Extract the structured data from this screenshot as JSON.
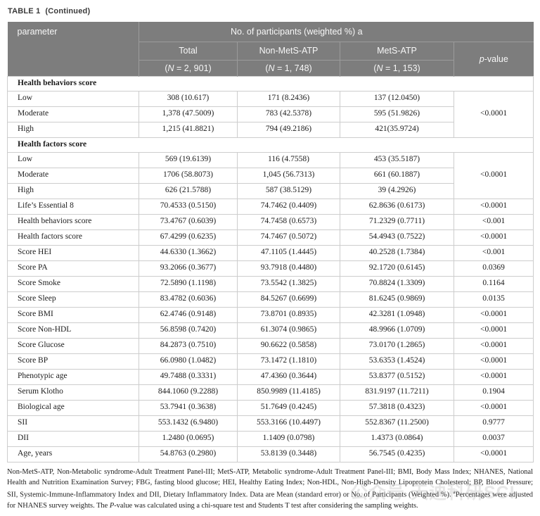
{
  "title": {
    "label": "TABLE 1",
    "continued": "(Continued)"
  },
  "header": {
    "parameter": "parameter",
    "group": "No. of participants (weighted %) a",
    "columns": [
      {
        "label": "Total",
        "n_open": "(",
        "n_var": "N",
        "n_rest": " = 2, 901)"
      },
      {
        "label": "Non-MetS-ATP",
        "n_open": "(",
        "n_var": "N",
        "n_rest": " = 1, 748)"
      },
      {
        "label": "MetS-ATP",
        "n_open": "(",
        "n_var": "N",
        "n_rest": " = 1, 153)"
      }
    ],
    "pvalue": {
      "italic": "p",
      "rest": "-value"
    }
  },
  "rows": [
    {
      "type": "section",
      "label": "Health behaviors score"
    },
    {
      "type": "data",
      "label": "Low",
      "total": "308 (10.617)",
      "non_mets": "171 (8.2436)",
      "mets": "137 (12.0450)",
      "p": "<0.0001",
      "p_rowspan": 3
    },
    {
      "type": "data",
      "label": "Moderate",
      "total": "1,378 (47.5009)",
      "non_mets": "783 (42.5378)",
      "mets": "595 (51.9826)"
    },
    {
      "type": "data",
      "label": "High",
      "total": "1,215 (41.8821)",
      "non_mets": "794 (49.2186)",
      "mets": "421(35.9724)"
    },
    {
      "type": "section",
      "label": "Health factors score"
    },
    {
      "type": "data",
      "label": "Low",
      "total": "569 (19.6139)",
      "non_mets": "116 (4.7558)",
      "mets": "453 (35.5187)",
      "p": "<0.0001",
      "p_rowspan": 3
    },
    {
      "type": "data",
      "label": "Moderate",
      "total": "1706 (58.8073)",
      "non_mets": "1,045 (56.7313)",
      "mets": "661 (60.1887)"
    },
    {
      "type": "data",
      "label": "High",
      "total": "626 (21.5788)",
      "non_mets": "587 (38.5129)",
      "mets": "39 (4.2926)"
    },
    {
      "type": "data",
      "label": "Life’s Essential 8",
      "total": "70.4533 (0.5150)",
      "non_mets": "74.7462 (0.4409)",
      "mets": "62.8636 (0.6173)",
      "p": "<0.0001"
    },
    {
      "type": "data",
      "label": "Health behaviors score",
      "total": "73.4767 (0.6039)",
      "non_mets": "74.7458 (0.6573)",
      "mets": "71.2329 (0.7711)",
      "p": "<0.001"
    },
    {
      "type": "data",
      "label": "Health factors score",
      "total": "67.4299 (0.6235)",
      "non_mets": "74.7467 (0.5072)",
      "mets": "54.4943 (0.7522)",
      "p": "<0.0001"
    },
    {
      "type": "data",
      "label": "Score HEI",
      "total": "44.6330 (1.3662)",
      "non_mets": "47.1105 (1.4445)",
      "mets": "40.2528 (1.7384)",
      "p": "<0.001"
    },
    {
      "type": "data",
      "label": "Score PA",
      "total": "93.2066 (0.3677)",
      "non_mets": "93.7918 (0.4480)",
      "mets": "92.1720 (0.6145)",
      "p": "0.0369"
    },
    {
      "type": "data",
      "label": "Score Smoke",
      "total": "72.5890 (1.1198)",
      "non_mets": "73.5542 (1.3825)",
      "mets": "70.8824 (1.3309)",
      "p": "0.1164"
    },
    {
      "type": "data",
      "label": "Score Sleep",
      "total": "83.4782 (0.6036)",
      "non_mets": "84.5267 (0.6699)",
      "mets": "81.6245 (0.9869)",
      "p": "0.0135"
    },
    {
      "type": "data",
      "label": "Score BMI",
      "total": "62.4746 (0.9148)",
      "non_mets": "73.8701 (0.8935)",
      "mets": "42.3281 (1.0948)",
      "p": "<0.0001"
    },
    {
      "type": "data",
      "label": "Score Non-HDL",
      "total": "56.8598 (0.7420)",
      "non_mets": "61.3074 (0.9865)",
      "mets": "48.9966 (1.0709)",
      "p": "<0.0001"
    },
    {
      "type": "data",
      "label": "Score Glucose",
      "total": "84.2873 (0.7510)",
      "non_mets": "90.6622 (0.5858)",
      "mets": "73.0170 (1.2865)",
      "p": "<0.0001"
    },
    {
      "type": "data",
      "label": "Score BP",
      "total": "66.0980 (1.0482)",
      "non_mets": "73.1472 (1.1810)",
      "mets": "53.6353 (1.4524)",
      "p": "<0.0001"
    },
    {
      "type": "data",
      "label": "Phenotypic age",
      "total": "49.7488 (0.3331)",
      "non_mets": "47.4360 (0.3644)",
      "mets": "53.8377 (0.5152)",
      "p": "<0.0001"
    },
    {
      "type": "data",
      "label": "Serum Klotho",
      "total": "844.1060 (9.2288)",
      "non_mets": "850.9989 (11.4185)",
      "mets": "831.9197 (11.7211)",
      "p": "0.1904"
    },
    {
      "type": "data",
      "label": "Biological age",
      "total": "53.7941 (0.3638)",
      "non_mets": "51.7649 (0.4245)",
      "mets": "57.3818 (0.4323)",
      "p": "<0.0001"
    },
    {
      "type": "data",
      "label": "SII",
      "total": "553.1432 (6.9480)",
      "non_mets": "553.3166 (10.4497)",
      "mets": "552.8367 (11.2500)",
      "p": "0.9777"
    },
    {
      "type": "data",
      "label": "DII",
      "total": "1.2480 (0.0695)",
      "non_mets": "1.1409 (0.0798)",
      "mets": "1.4373 (0.0864)",
      "p": "0.0037"
    },
    {
      "type": "data",
      "label": "Age, years",
      "total": "54.8763 (0.2980)",
      "non_mets": "53.8139 (0.3448)",
      "mets": "56.7545 (0.4235)",
      "p": "<0.0001"
    }
  ],
  "footnote": {
    "main": "Non-MetS-ATP, Non-Metabolic syndrome-Adult Treatment Panel-III; MetS-ATP, Metabolic syndrome-Adult Treatment Panel-III; BMI, Body Mass Index; NHANES, National Health and Nutrition Examination Survey; FBG, fasting blood glucose; HEI, Healthy Eating Index; Non-HDL, Non-High-Density Lipoprotein Cholesterol; BP, Blood Pressure; SII, Systemic-Immune-Inflammatory Index and DII, Dietary Inflammatory Index. Data are Mean (standard error) or No. of Participants (Weighted %). ",
    "sup": "a",
    "after_sup": "Percentages were adjusted for NHANES survey weights. The ",
    "p_italic": "P",
    "end": "-value was calculated using a chi-square test and Students T test after considering the sampling weights."
  },
  "watermark": {
    "text": "公众号 天迪科研SCI"
  },
  "colors": {
    "header_bg": "#7d7d7d",
    "header_text": "#f7f7f7",
    "header_divider": "#9b9b9b",
    "body_border": "#cdcdcd",
    "text": "#1b1b1b"
  }
}
